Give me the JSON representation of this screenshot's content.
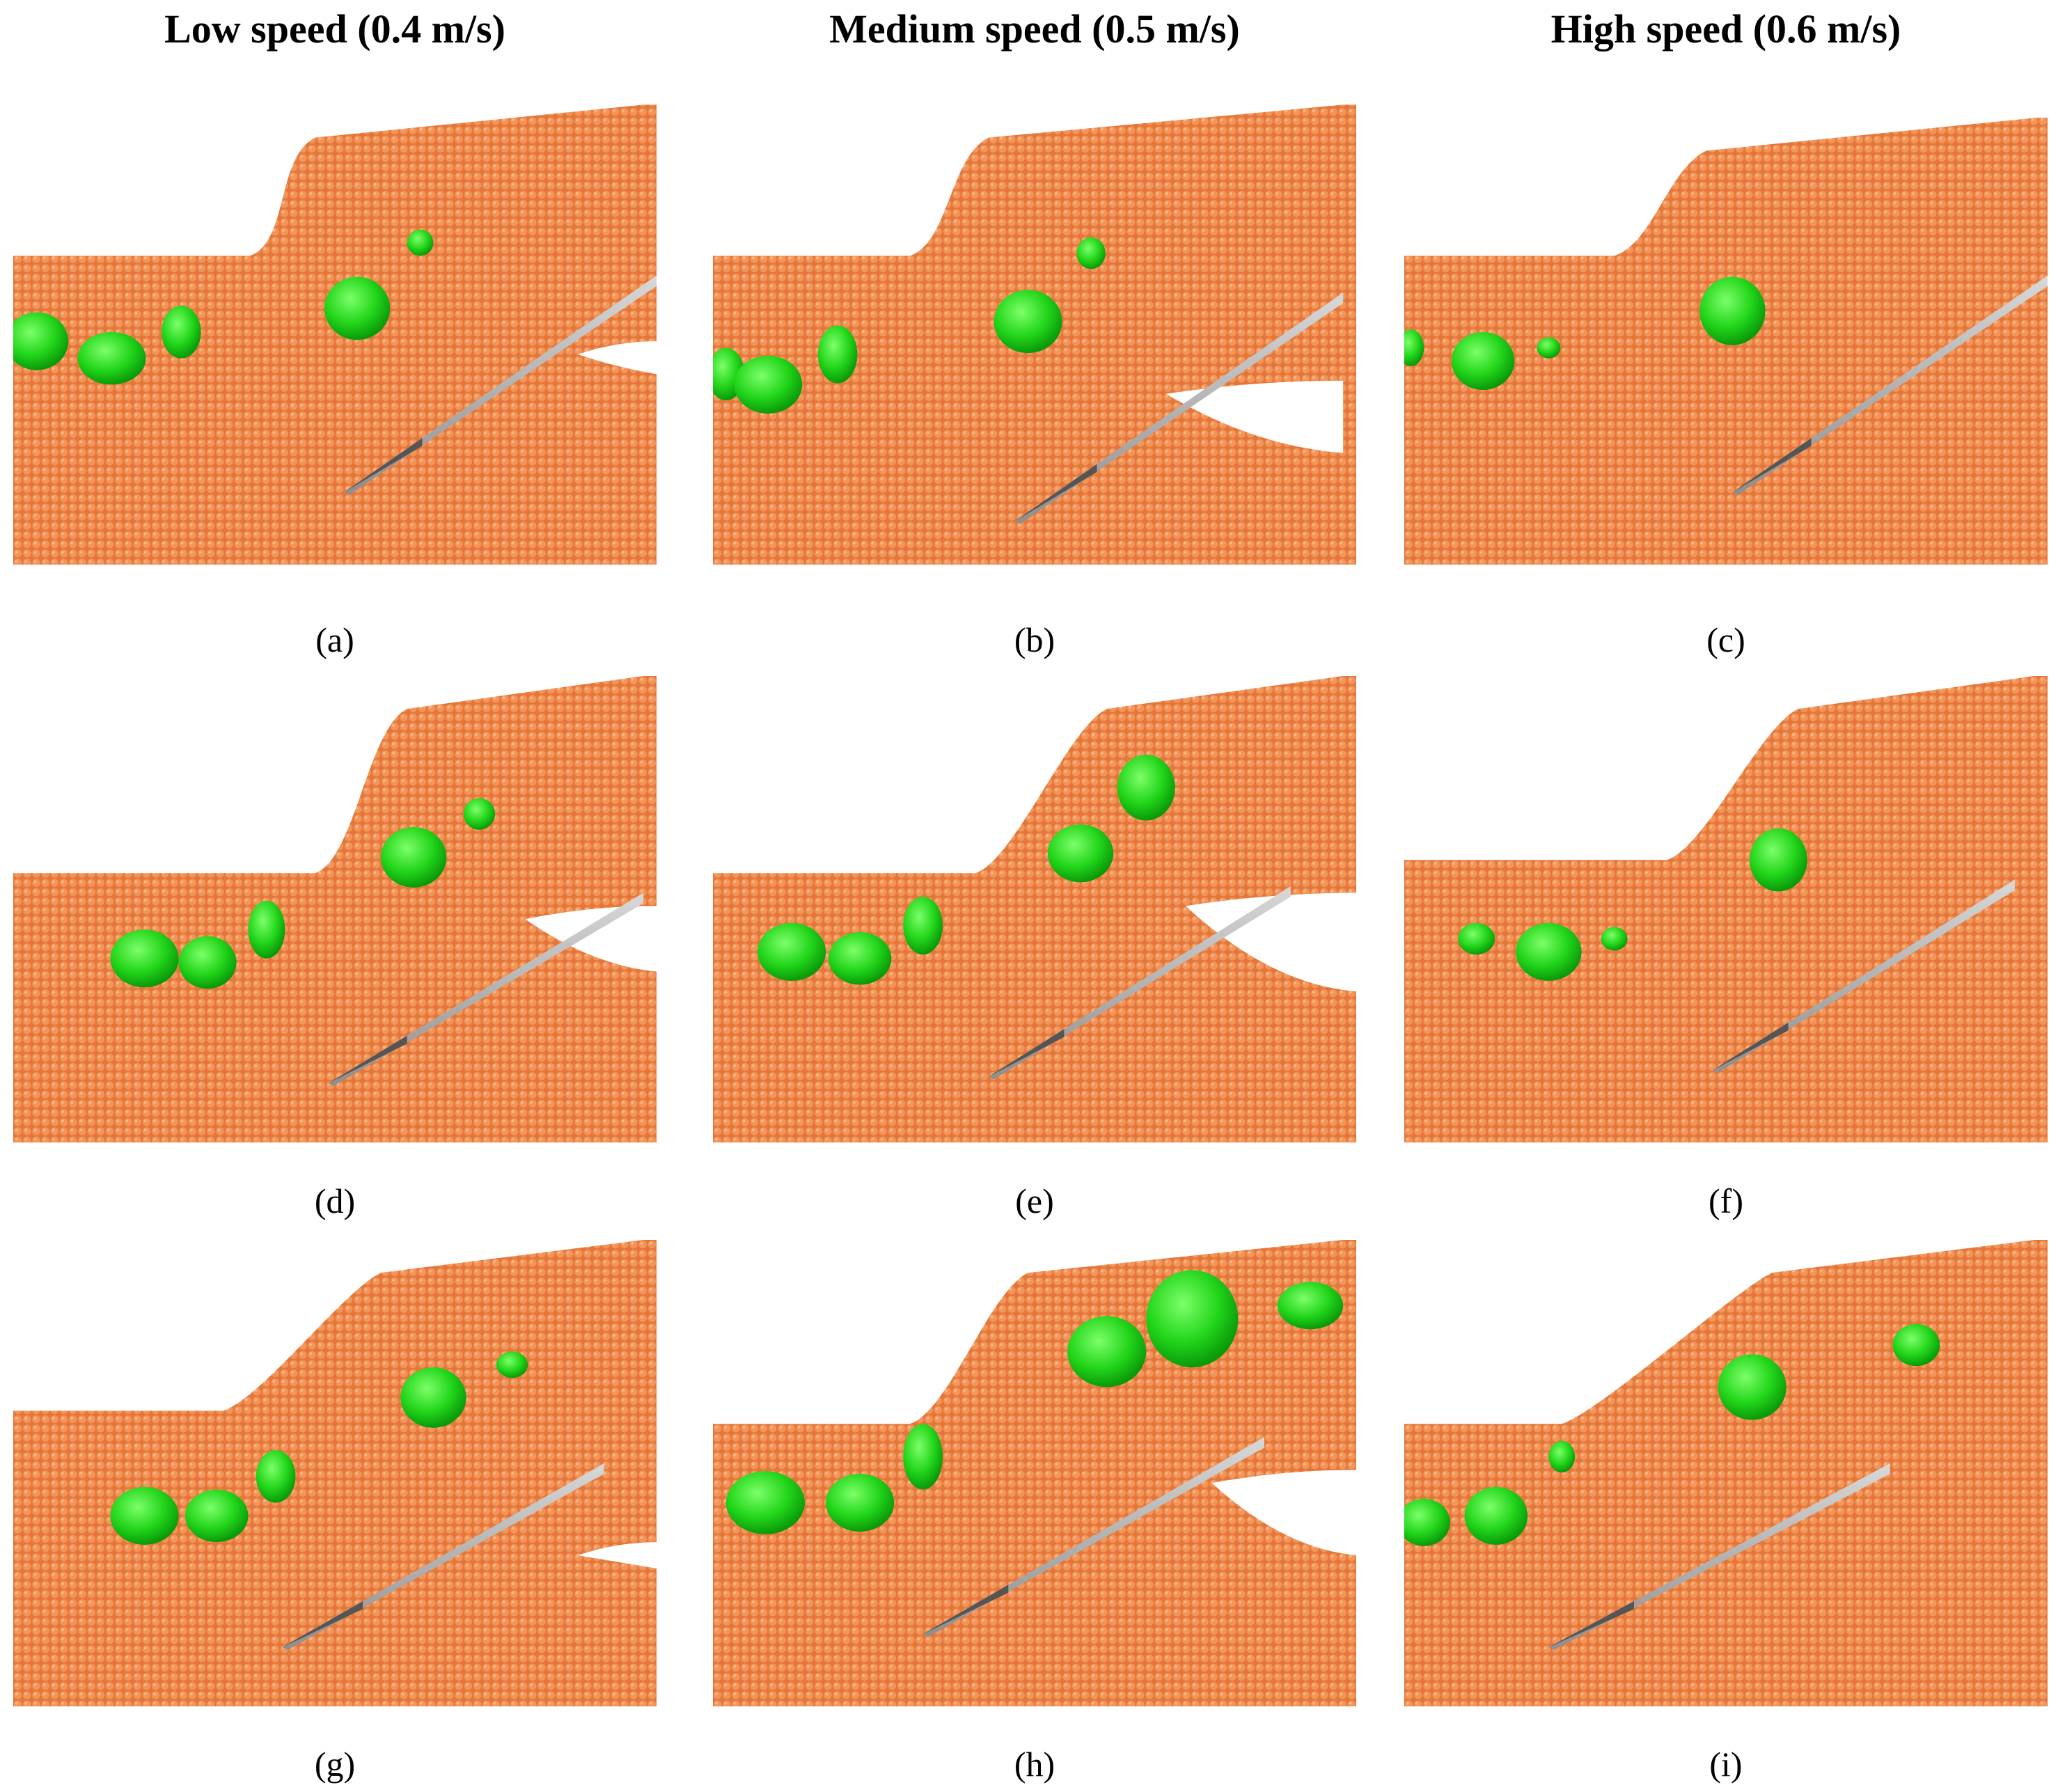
{
  "header": {
    "columns": [
      "Low speed (0.4 m/s)",
      "Medium speed (0.5 m/s)",
      "High speed (0.6 m/s)"
    ]
  },
  "panels": {
    "labels": [
      "(a)",
      "(b)",
      "(c)",
      "(d)",
      "(e)",
      "(f)",
      "(g)",
      "(h)",
      "(i)"
    ]
  }
}
